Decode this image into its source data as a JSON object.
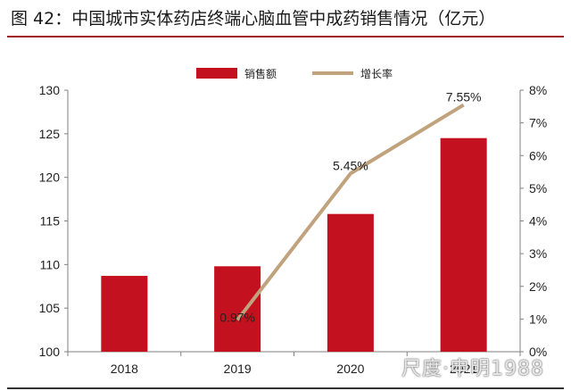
{
  "header": {
    "title": "图 42：中国城市实体药店终端心脑血管中成药销售情况（亿元）"
  },
  "watermark": "尺度·申明1988",
  "colors": {
    "bar": "#c4111f",
    "line": "#c0a27c",
    "rule": "#a01820"
  },
  "chart_data": {
    "type": "bar",
    "categories": [
      "2018",
      "2019",
      "2020",
      "2021"
    ],
    "series": [
      {
        "name": "销售额",
        "type": "bar",
        "axis": "left",
        "values": [
          108.7,
          109.8,
          115.8,
          124.5
        ]
      },
      {
        "name": "增长率",
        "type": "line",
        "axis": "right",
        "values": [
          null,
          0.97,
          5.45,
          7.55
        ],
        "data_labels": [
          "",
          "0.97%",
          "5.45%",
          "7.55%"
        ]
      }
    ],
    "y_left": {
      "ylim": [
        100,
        130
      ],
      "ticks": [
        "100",
        "105",
        "110",
        "115",
        "120",
        "125",
        "130"
      ]
    },
    "y_right": {
      "ylim": [
        0,
        8
      ],
      "ticks": [
        "0%",
        "1%",
        "2%",
        "3%",
        "4%",
        "5%",
        "6%",
        "7%",
        "8%"
      ]
    },
    "legend_position": "top-center",
    "grid": false
  }
}
